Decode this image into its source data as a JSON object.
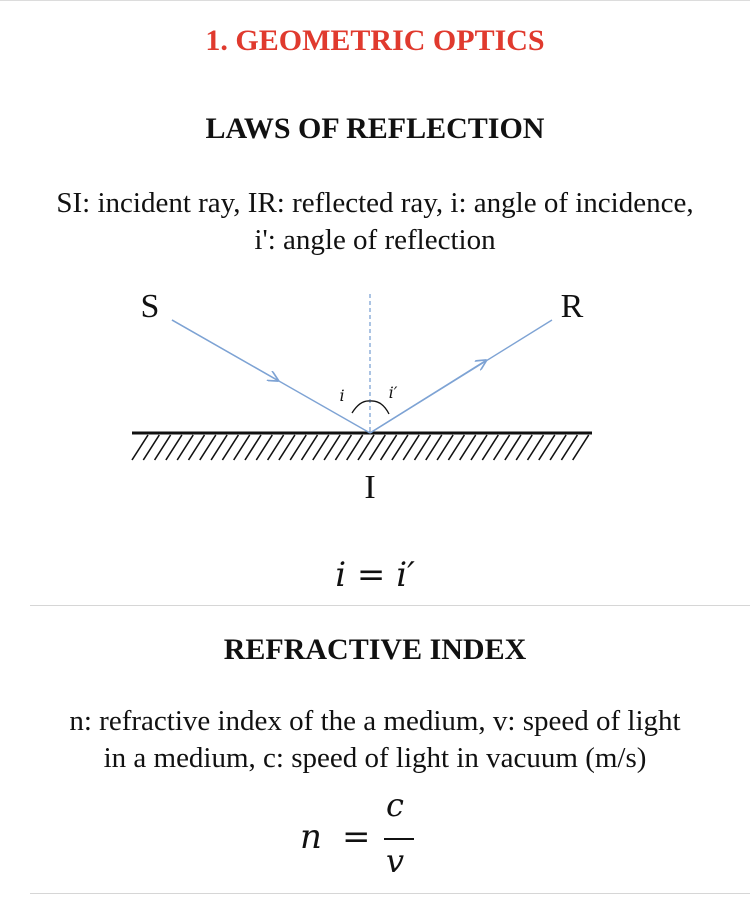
{
  "page": {
    "title": "1. GEOMETRIC OPTICS",
    "title_color": "#e03a2e"
  },
  "reflection": {
    "heading": "LAWS OF REFLECTION",
    "desc_line1": "SI: incident ray, IR: reflected ray, i: angle of incidence,",
    "desc_line2": "i': angle of reflection",
    "diagram": {
      "label_s": "S",
      "label_r": "R",
      "label_i": "I",
      "angle_incidence": "i",
      "angle_reflection": "i′",
      "ray_color": "#7ea3d4"
    },
    "formula": {
      "lhs": "i",
      "eq": "=",
      "rhs": "i′"
    }
  },
  "refraction": {
    "heading": "REFRACTIVE INDEX",
    "desc_line1": "n: refractive index of the a medium, v: speed of light",
    "desc_line2": "in a medium, c: speed of light in vacuum (m/s)",
    "formula": {
      "lhs": "n",
      "eq": "=",
      "numerator": "c",
      "denominator": "v"
    }
  }
}
